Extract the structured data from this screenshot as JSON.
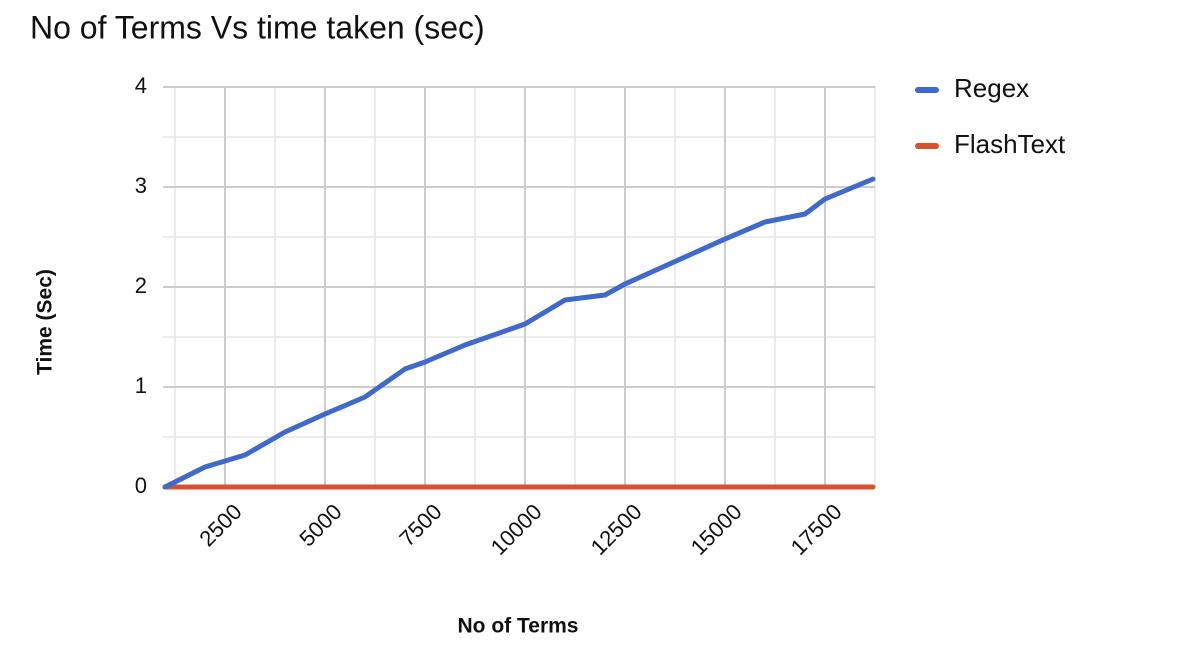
{
  "chart_data": {
    "type": "line",
    "title": "No of Terms Vs time taken (sec)",
    "x_label": "No of Terms",
    "y_label": "Time (Sec)",
    "x": [
      1000,
      2000,
      2500,
      3000,
      4000,
      5000,
      6000,
      7000,
      7500,
      8500,
      10000,
      11000,
      12000,
      12500,
      14000,
      15000,
      16000,
      17000,
      17500,
      18700
    ],
    "series": [
      {
        "name": "Regex",
        "color": "#3f69cc",
        "values": [
          0,
          0.2,
          0.26,
          0.32,
          0.55,
          0.73,
          0.9,
          1.18,
          1.25,
          1.42,
          1.63,
          1.87,
          1.92,
          2.03,
          2.3,
          2.48,
          2.65,
          2.73,
          2.88,
          3.08
        ]
      },
      {
        "name": "FlashText",
        "color": "#d8512e",
        "values": [
          0,
          0,
          0,
          0,
          0,
          0,
          0,
          0,
          0,
          0,
          0,
          0,
          0,
          0,
          0,
          0,
          0,
          0,
          0,
          0
        ]
      }
    ],
    "xlim": [
      950,
      18750
    ],
    "xticks": [
      2500,
      5000,
      7500,
      10000,
      12500,
      15000,
      17500
    ],
    "ylim": [
      0,
      4
    ],
    "yticks": [
      0,
      1,
      2,
      3,
      4
    ],
    "grid": true,
    "legend": "right"
  }
}
